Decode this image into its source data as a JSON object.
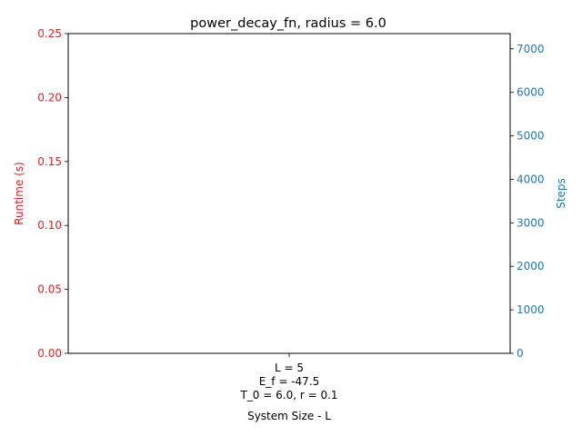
{
  "chart_data": {
    "type": "bar",
    "title": "power_decay_fn, radius = 6.0",
    "xlabel": "System Size - L",
    "categories": [
      [
        "L = 5",
        "E_f = -47.5",
        "T_0 = 6.0, r = 0.1"
      ]
    ],
    "left_axis": {
      "label": "Runtime (s)",
      "color": "#d62728",
      "ylim": [
        0,
        0.25
      ],
      "ticks": [
        "0.00",
        "0.05",
        "0.10",
        "0.15",
        "0.20",
        "0.25"
      ],
      "tick_values": [
        0,
        0.05,
        0.1,
        0.15,
        0.2,
        0.25
      ]
    },
    "right_axis": {
      "label": "Steps",
      "color": "#1f77b4",
      "ylim": [
        0,
        7350
      ],
      "ticks": [
        "0",
        "1000",
        "2000",
        "3000",
        "4000",
        "5000",
        "6000",
        "7000"
      ],
      "tick_values": [
        0,
        1000,
        2000,
        3000,
        4000,
        5000,
        6000,
        7000
      ]
    },
    "series": [],
    "grid": false
  }
}
